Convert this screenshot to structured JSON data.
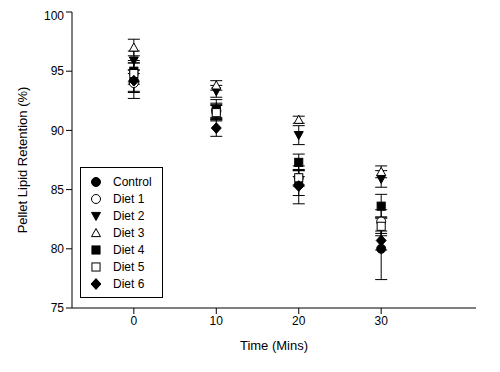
{
  "chart_data": {
    "type": "scatter",
    "x_label": "Time (Mins)",
    "y_label": "Pellet Lipid Retention (%)",
    "x": [
      0,
      10,
      20,
      30
    ],
    "xlim": [
      -7.5,
      41.5
    ],
    "xticks": [
      0,
      10,
      20,
      30
    ],
    "ylim": [
      75,
      100
    ],
    "yticks": [
      75,
      80,
      85,
      90,
      95,
      100
    ],
    "grid": false,
    "legend": "lower left",
    "series": [
      {
        "name": "Control",
        "color": "#000000",
        "marker": "circle",
        "values": [
          94.2,
          91.7,
          85.4,
          80.0
        ],
        "errors": [
          1.5,
          0.9,
          1.6,
          2.6
        ]
      },
      {
        "name": "Diet 1",
        "color": "#000000",
        "marker": "open_circle",
        "values": [
          94.0,
          91.6,
          86.0,
          82.3
        ],
        "errors": [
          0.8,
          0.6,
          0.7,
          1.0
        ]
      },
      {
        "name": "Diet 2",
        "color": "#000000",
        "marker": "triangle_down",
        "values": [
          95.9,
          93.3,
          89.6,
          85.9
        ],
        "errors": [
          0.8,
          0.5,
          0.8,
          0.7
        ]
      },
      {
        "name": "Diet 3",
        "color": "#000000",
        "marker": "open_triangle_up",
        "values": [
          97.0,
          93.8,
          90.9,
          86.5
        ],
        "errors": [
          0.7,
          0.4,
          0.3,
          0.5
        ]
      },
      {
        "name": "Diet 4",
        "color": "#000000",
        "marker": "square",
        "values": [
          95.0,
          91.7,
          87.3,
          83.6
        ],
        "errors": [
          0.9,
          0.6,
          0.7,
          1.0
        ]
      },
      {
        "name": "Diet 5",
        "color": "#000000",
        "marker": "open_square",
        "values": [
          94.8,
          91.5,
          86.0,
          81.9
        ],
        "errors": [
          0.9,
          0.6,
          0.6,
          0.8
        ]
      },
      {
        "name": "Diet 6",
        "color": "#000000",
        "marker": "diamond",
        "values": [
          94.2,
          90.2,
          85.3,
          80.7
        ],
        "errors": [
          0.9,
          0.7,
          0.8,
          0.8
        ]
      }
    ]
  }
}
